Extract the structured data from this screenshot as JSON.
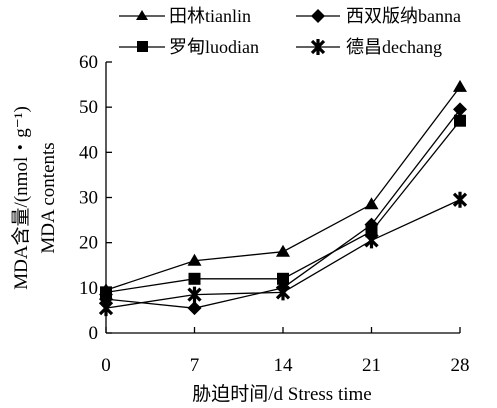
{
  "chart_data": {
    "type": "line",
    "title": "",
    "xlabel": "胁迫时间/d Stress time",
    "ylabel_line1": "MDA含量/(nmol・g⁻¹)",
    "ylabel_line2": "MDA contents",
    "x": [
      0,
      7,
      14,
      21,
      28
    ],
    "x_ticks": [
      "0",
      "7",
      "14",
      "21",
      "28"
    ],
    "xlim": [
      0,
      28
    ],
    "ylim": [
      0,
      60
    ],
    "y_ticks": [
      "0",
      "10",
      "20",
      "30",
      "40",
      "50",
      "60"
    ],
    "grid": false,
    "legend_position": "top",
    "series": [
      {
        "name": "田林tianlin",
        "marker": "triangle",
        "values": [
          9.5,
          16.0,
          18.0,
          28.5,
          54.5
        ]
      },
      {
        "name": "西双版纳banna",
        "marker": "diamond",
        "values": [
          7.5,
          5.5,
          10.0,
          24.0,
          49.5
        ]
      },
      {
        "name": "罗甸luodian",
        "marker": "square",
        "values": [
          9.0,
          12.0,
          12.0,
          22.5,
          47.0
        ]
      },
      {
        "name": "德昌dechang",
        "marker": "star",
        "values": [
          5.5,
          8.5,
          9.0,
          20.5,
          29.5
        ]
      }
    ]
  }
}
